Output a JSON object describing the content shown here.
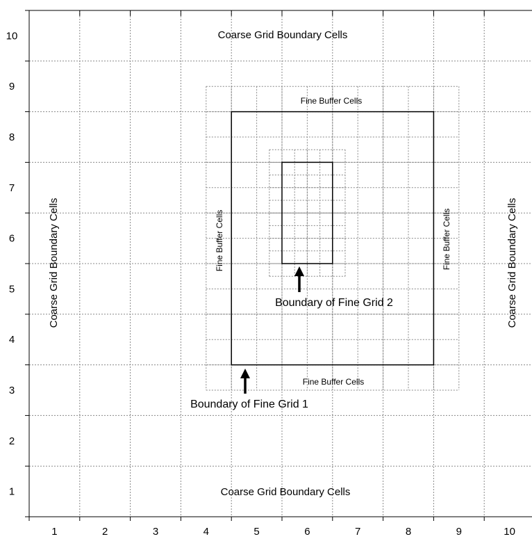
{
  "x_tick_labels": [
    "1",
    "2",
    "3",
    "4",
    "5",
    "6",
    "7",
    "8",
    "9",
    "10"
  ],
  "y_tick_labels": [
    "1",
    "2",
    "3",
    "4",
    "5",
    "6",
    "7",
    "8",
    "9",
    "10"
  ],
  "labels": {
    "coarse_top": "Coarse Grid Boundary Cells",
    "coarse_bottom": "Coarse Grid Boundary Cells",
    "coarse_left": "Coarse Grid Boundary Cells",
    "coarse_right": "Coarse Grid Boundary Cells",
    "fine_buffer_top": "Fine Buffer Cells",
    "fine_buffer_bottom": "Fine Buffer Cells",
    "fine_buffer_left": "Fine Buffer Cells",
    "fine_buffer_right": "Fine Buffer Cells",
    "fine_grid_1": "Boundary of Fine Grid 1",
    "fine_grid_2": "Boundary of Fine Grid 2"
  },
  "grid": {
    "coarse_cells": [
      10,
      10
    ],
    "fine_grid_1": {
      "x_range": [
        4,
        8
      ],
      "y_range": [
        3,
        8
      ],
      "refinement": 2,
      "buffer_cells": 1
    },
    "fine_grid_2": {
      "x_range": [
        5,
        6
      ],
      "y_range": [
        5,
        7
      ],
      "refinement": 4,
      "buffer_cells": 1
    }
  },
  "colors": {
    "solid_line": "#000000",
    "dotted_line": "#888888"
  }
}
